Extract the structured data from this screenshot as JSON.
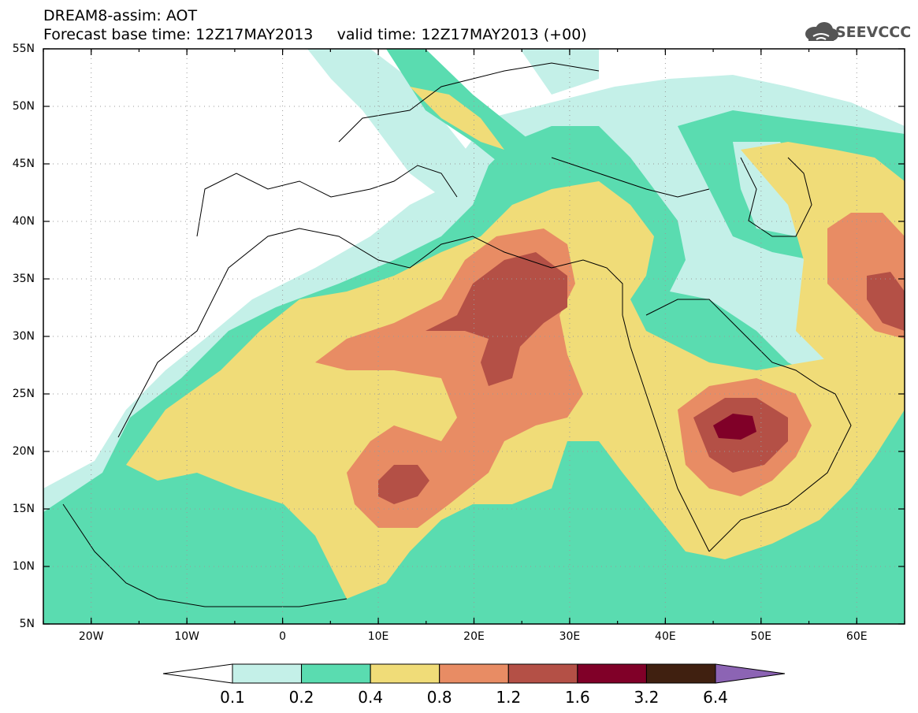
{
  "header": {
    "model_title": "DREAM8-assim: AOT",
    "forecast_line": "Forecast base time: 12Z17MAY2013     valid time: 12Z17MAY2013 (+00)",
    "logo_text": "SEEVCCC"
  },
  "axes": {
    "lat_labels": [
      "55N",
      "50N",
      "45N",
      "40N",
      "35N",
      "30N",
      "25N",
      "20N",
      "15N",
      "10N",
      "5N"
    ],
    "lat_values": [
      55,
      50,
      45,
      40,
      35,
      30,
      25,
      20,
      15,
      10,
      5
    ],
    "lon_labels": [
      "20W",
      "10W",
      "0",
      "10E",
      "20E",
      "30E",
      "40E",
      "50E",
      "60E"
    ],
    "lon_values": [
      -20,
      -10,
      0,
      10,
      20,
      30,
      40,
      50,
      60
    ],
    "lon_range": [
      -25,
      65
    ],
    "lat_range": [
      5,
      55
    ],
    "grid": "dotted"
  },
  "colorbar": {
    "labels": [
      "0.1",
      "0.2",
      "0.4",
      "0.8",
      "1.2",
      "1.6",
      "3.2",
      "6.4"
    ],
    "colors": [
      "#ffffff",
      "#c4f0e8",
      "#5adcb0",
      "#f0dc78",
      "#e88c64",
      "#b45046",
      "#800028",
      "#402010",
      "#8c64b4"
    ]
  }
}
